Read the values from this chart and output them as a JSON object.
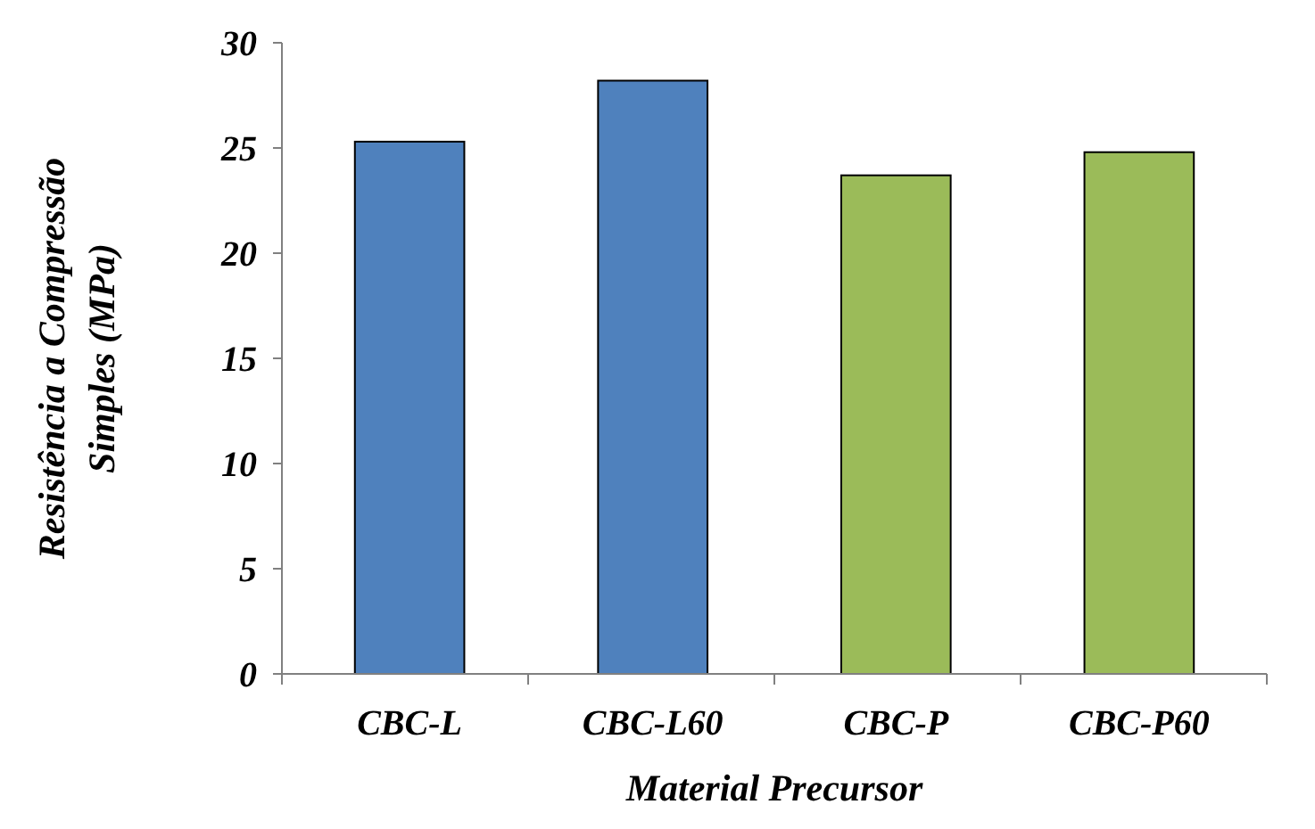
{
  "chart_data": {
    "type": "bar",
    "xlabel": "Material Precursor",
    "ylabel": "Resistência a Compressão Simples (MPa)",
    "categories": [
      "CBC-L",
      "CBC-L60",
      "CBC-P",
      "CBC-P60"
    ],
    "values": [
      25.3,
      28.2,
      23.7,
      24.8
    ],
    "colors": [
      "#4f81bd",
      "#4f81bd",
      "#9bbb59",
      "#9bbb59"
    ],
    "ylim": [
      0,
      30
    ],
    "yticks": [
      0,
      5,
      10,
      15,
      20,
      25,
      30
    ],
    "grid": false
  }
}
